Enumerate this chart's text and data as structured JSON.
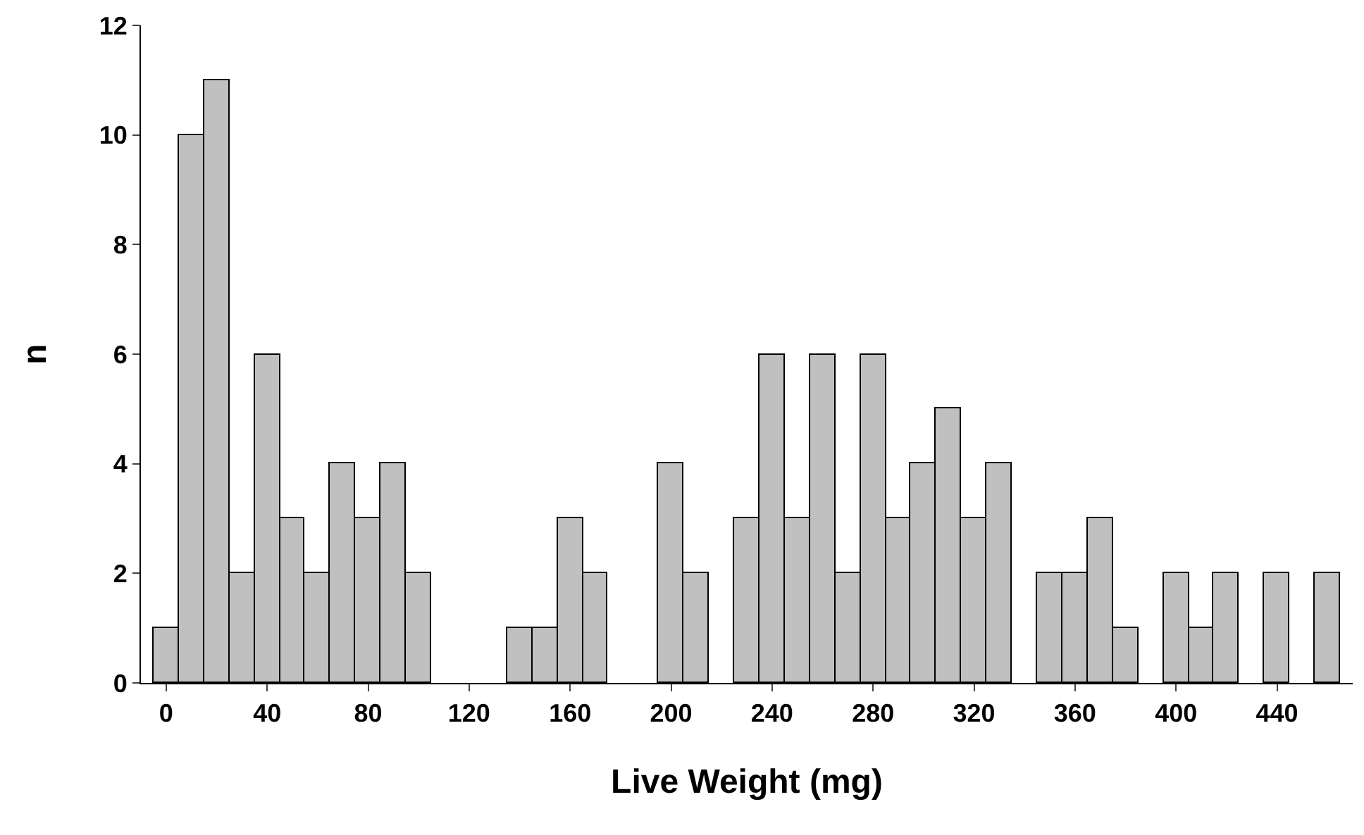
{
  "chart_data": {
    "type": "histogram",
    "xlabel": "Live Weight (mg)",
    "ylabel": "n",
    "bins": [
      -5,
      5,
      15,
      25,
      35,
      45,
      55,
      65,
      75,
      85,
      95,
      105,
      115,
      125,
      135,
      145,
      155,
      165,
      175,
      185,
      195,
      205,
      215,
      225,
      235,
      245,
      255,
      265,
      275,
      285,
      295,
      305,
      315,
      325,
      335,
      345,
      355,
      365,
      375,
      385,
      395,
      405,
      415,
      425,
      435,
      445,
      455,
      465
    ],
    "values": [
      1,
      10,
      11,
      2,
      6,
      3,
      2,
      4,
      3,
      4,
      2,
      0,
      0,
      0,
      1,
      1,
      3,
      2,
      0,
      0,
      4,
      2,
      0,
      3,
      6,
      3,
      6,
      2,
      6,
      3,
      4,
      5,
      3,
      4,
      0,
      2,
      2,
      3,
      1,
      0,
      2,
      1,
      2,
      0,
      2,
      0,
      2
    ],
    "color": "#c0c0c0",
    "xlim": [
      -10,
      470
    ],
    "xticks": [
      0,
      40,
      80,
      120,
      160,
      200,
      240,
      280,
      320,
      360,
      400,
      440
    ],
    "ylim": [
      0,
      12
    ],
    "yticks": [
      0,
      2,
      4,
      6,
      8,
      10,
      12
    ],
    "grid": false
  }
}
